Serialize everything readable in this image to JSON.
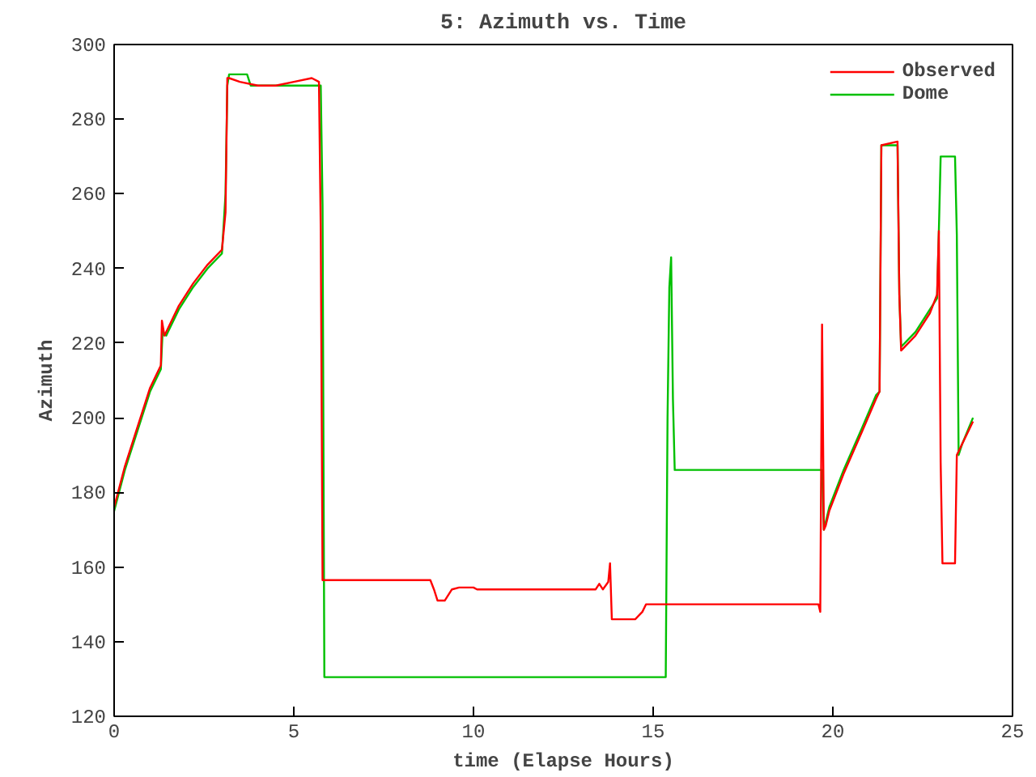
{
  "chart_data": {
    "type": "line",
    "title": "5: Azimuth vs. Time",
    "xlabel": "time (Elapse Hours)",
    "ylabel": "Azimuth",
    "xlim": [
      0,
      25
    ],
    "ylim": [
      120,
      300
    ],
    "xticks": [
      0,
      5,
      10,
      15,
      20,
      25
    ],
    "yticks": [
      120,
      140,
      160,
      180,
      200,
      220,
      240,
      260,
      280,
      300
    ],
    "grid": false,
    "legend": "top right",
    "line_style": "solid",
    "marker": "none",
    "series": [
      {
        "name": "Observed",
        "color": "#ff0000",
        "x": [
          0,
          0.3,
          0.7,
          1.0,
          1.3,
          1.33,
          1.4,
          1.5,
          1.8,
          2.2,
          2.6,
          3.0,
          3.1,
          3.15,
          3.2,
          3.5,
          4.0,
          4.5,
          5.0,
          5.5,
          5.7,
          5.75,
          5.8,
          8.8,
          8.9,
          9.0,
          9.2,
          9.4,
          9.6,
          10.0,
          10.1,
          13.4,
          13.5,
          13.6,
          13.75,
          13.8,
          13.85,
          14.5,
          14.7,
          14.8,
          19.6,
          19.65,
          19.7,
          19.75,
          19.8,
          19.9,
          20.3,
          20.8,
          21.2,
          21.3,
          21.35,
          21.8,
          21.85,
          21.9,
          22.3,
          22.7,
          22.9,
          22.95,
          23.0,
          23.05,
          23.4,
          23.45,
          23.6,
          23.9
        ],
        "values": [
          176,
          187,
          199,
          208,
          214,
          226,
          222,
          224,
          230,
          236,
          241,
          245,
          255,
          291,
          291,
          290,
          289,
          289,
          290,
          291,
          290,
          250,
          156.5,
          156.5,
          154,
          151,
          151,
          154,
          154.5,
          154.5,
          154,
          154,
          155.5,
          154,
          156,
          161,
          146,
          146,
          148,
          150,
          150,
          148,
          225,
          170,
          171,
          175,
          185,
          196,
          205,
          207,
          273,
          274,
          233,
          218,
          222,
          228,
          233,
          250,
          188,
          161,
          161,
          190,
          193,
          199
        ]
      },
      {
        "name": "Dome",
        "color": "#00c000",
        "x": [
          0,
          0.3,
          0.7,
          1.0,
          1.3,
          1.35,
          1.45,
          1.5,
          1.8,
          2.2,
          2.6,
          3.0,
          3.1,
          3.15,
          3.2,
          3.5,
          3.7,
          3.8,
          4.0,
          4.5,
          5.0,
          5.5,
          5.75,
          5.8,
          5.85,
          15.35,
          15.4,
          15.45,
          15.5,
          15.55,
          15.6,
          19.7,
          19.75,
          19.8,
          19.9,
          20.3,
          20.8,
          21.2,
          21.3,
          21.35,
          21.8,
          21.85,
          21.9,
          22.3,
          22.7,
          22.9,
          22.95,
          23.0,
          23.4,
          23.45,
          23.5,
          23.6,
          23.9
        ],
        "values": [
          175,
          186,
          198,
          207,
          213,
          223,
          222,
          223,
          229,
          235,
          240,
          244,
          260,
          289,
          292,
          292,
          292,
          289,
          289,
          289,
          289,
          289,
          289,
          257,
          130.5,
          130.5,
          200,
          235,
          243,
          205,
          186,
          186,
          170,
          172,
          176,
          186,
          197,
          206,
          207,
          273,
          273,
          233,
          219,
          223,
          229,
          232,
          250,
          270,
          270,
          249,
          190,
          193,
          200
        ]
      }
    ]
  }
}
